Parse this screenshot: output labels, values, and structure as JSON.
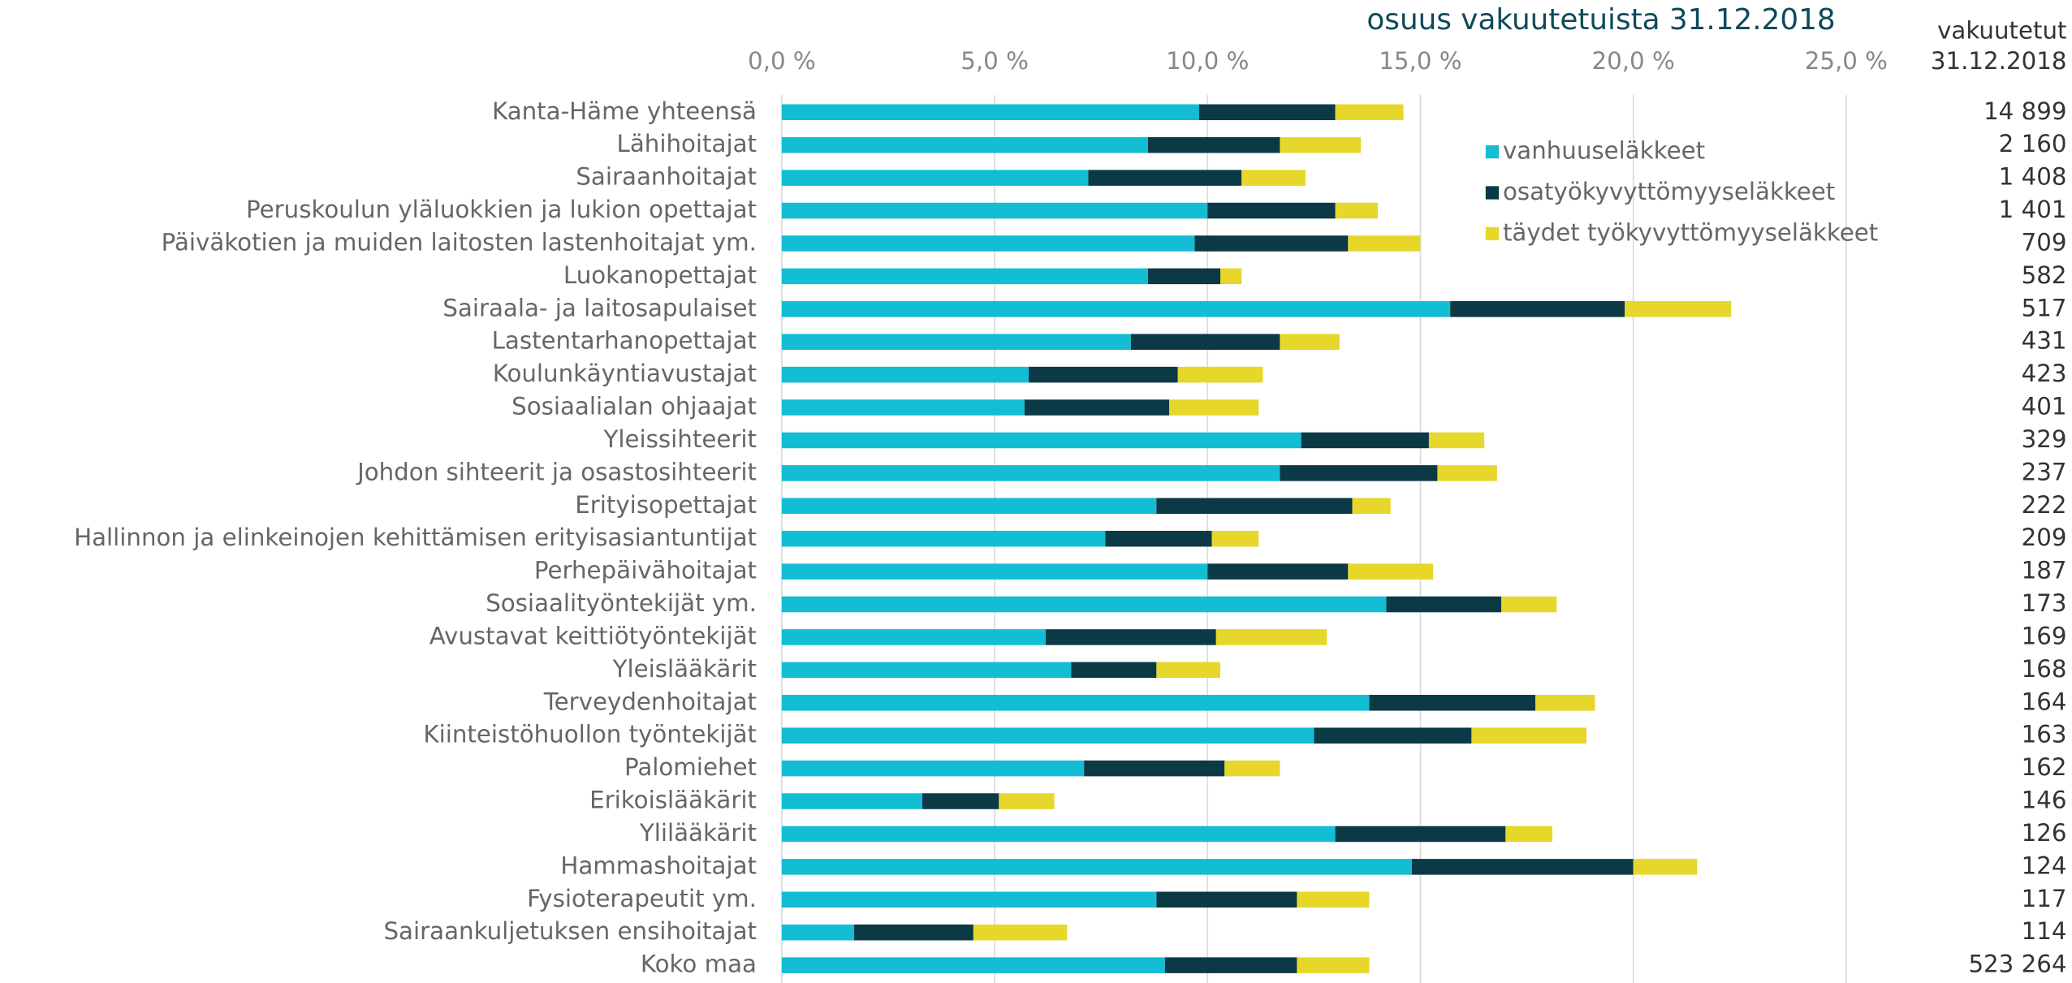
{
  "chart_data": {
    "type": "stacked_hbar",
    "title": "osuus vakuutetuista 31.12.2018",
    "categories": [
      "Kanta-Häme yhteensä",
      "Lähihoitajat",
      "Sairaanhoitajat",
      "Peruskoulun yläluokkien ja lukion opettajat",
      "Päiväkotien ja muiden laitosten lastenhoitajat ym.",
      "Luokanopettajat",
      "Sairaala- ja laitosapulaiset",
      "Lastentarhanopettajat",
      "Koulunkäyntiavustajat",
      "Sosiaalialan ohjaajat",
      "Yleissihteerit",
      "Johdon sihteerit ja osastosihteerit",
      "Erityisopettajat",
      "Hallinnon ja elinkeinojen kehittämisen erityisasiantuntijat",
      "Perhepäivähoitajat",
      "Sosiaalityöntekijät ym.",
      "Avustavat keittiötyöntekijät",
      "Yleislääkärit",
      "Terveydenhoitajat",
      "Kiinteistöhuollon työntekijät",
      "Palomiehet",
      "Erikoislääkärit",
      "Ylilääkärit",
      "Hammashoitajat",
      "Fysioterapeutit ym.",
      "Sairaankuljetuksen ensihoitajat",
      "Koko maa"
    ],
    "series": [
      {
        "name": "vanhuuseläkkeet",
        "color": "#13bdd3",
        "values": [
          9.8,
          8.6,
          7.2,
          10.0,
          9.7,
          8.6,
          15.7,
          8.2,
          5.8,
          5.7,
          12.2,
          11.7,
          8.8,
          7.6,
          10.0,
          14.2,
          6.2,
          6.8,
          13.8,
          12.5,
          7.1,
          3.3,
          13.0,
          14.8,
          8.8,
          1.7,
          9.0
        ]
      },
      {
        "name": "osatyökyvyttömyyseläkkeet",
        "color": "#0b3a46",
        "values": [
          3.2,
          3.1,
          3.6,
          3.0,
          3.6,
          1.7,
          4.1,
          3.5,
          3.5,
          3.4,
          3.0,
          3.7,
          4.6,
          2.5,
          3.3,
          2.7,
          4.0,
          2.0,
          3.9,
          3.7,
          3.3,
          1.8,
          4.0,
          5.2,
          3.3,
          2.8,
          3.1
        ]
      },
      {
        "name": "täydet työkyvyttömyyseläkkeet",
        "color": "#e6d72a",
        "values": [
          1.6,
          1.9,
          1.5,
          1.0,
          1.7,
          0.5,
          2.5,
          1.4,
          2.0,
          2.1,
          1.3,
          1.4,
          0.9,
          1.1,
          2.0,
          1.3,
          2.6,
          1.5,
          1.4,
          2.7,
          1.3,
          1.3,
          1.1,
          1.5,
          1.7,
          2.2,
          1.7
        ]
      }
    ],
    "xlim": [
      0,
      25
    ],
    "xticks": [
      {
        "value": 0,
        "label": "0,0 %"
      },
      {
        "value": 5,
        "label": "5,0 %"
      },
      {
        "value": 10,
        "label": "10,0 %"
      },
      {
        "value": 15,
        "label": "15,0 %"
      },
      {
        "value": 20,
        "label": "20,0 %"
      },
      {
        "value": 25,
        "label": "25,0 %"
      }
    ],
    "grid": true,
    "legend": "upper right",
    "insured": {
      "header": [
        "vakuutetut",
        "31.12.2018"
      ],
      "values": [
        14899,
        2160,
        1408,
        1401,
        709,
        582,
        517,
        431,
        423,
        401,
        329,
        237,
        222,
        209,
        187,
        173,
        169,
        168,
        164,
        163,
        162,
        146,
        126,
        124,
        117,
        114,
        523264
      ],
      "value_labels": [
        "14 899",
        "2 160",
        "1 408",
        "1 401",
        "709",
        "582",
        "517",
        "431",
        "423",
        "401",
        "329",
        "237",
        "222",
        "209",
        "187",
        "173",
        "169",
        "168",
        "164",
        "163",
        "162",
        "146",
        "126",
        "124",
        "117",
        "114",
        "523 264"
      ]
    }
  }
}
